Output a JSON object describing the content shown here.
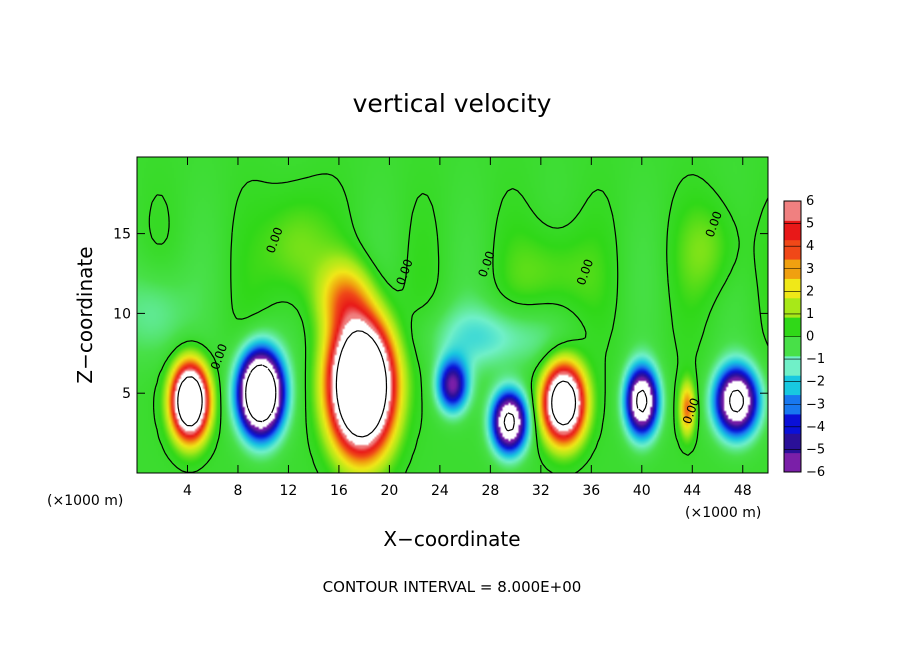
{
  "chart_data": {
    "type": "heatmap",
    "title": "vertical velocity",
    "xlabel": "X−coordinate",
    "ylabel": "Z−coordinate",
    "x_units": "(×1000 m)",
    "x_units_right": "(×1000 m)",
    "xlim": [
      0,
      50
    ],
    "ylim": [
      0,
      19.8
    ],
    "x_ticks": [
      4,
      8,
      12,
      16,
      20,
      24,
      28,
      32,
      36,
      40,
      44,
      48
    ],
    "y_ticks": [
      5,
      10,
      15
    ],
    "x_tick_labels": [
      "4",
      "8",
      "12",
      "16",
      "20",
      "24",
      "28",
      "32",
      "36",
      "40",
      "44",
      "48"
    ],
    "y_tick_labels": [
      "5",
      "10",
      "15"
    ],
    "colorbar": {
      "min": -6,
      "max": 6,
      "ticks": [
        6,
        5,
        4,
        3,
        2,
        1,
        0,
        -1,
        -2,
        -3,
        -4,
        -5,
        -6
      ],
      "tick_labels": [
        "6",
        "5",
        "4",
        "3",
        "2",
        "1",
        "0",
        "−1",
        "−2",
        "−3",
        "−4",
        "−5",
        "−6"
      ],
      "colors": [
        "#7a1fa8",
        "#2a1098",
        "#0a10d8",
        "#1878f0",
        "#18c8e0",
        "#70f0c8",
        "#48e048",
        "#30d818",
        "#a8e818",
        "#f0e818",
        "#f0a010",
        "#f04818",
        "#e81818",
        "#f08080"
      ],
      "over_color": "#ffffff",
      "under_color": "#ffffff"
    },
    "updrafts": [
      {
        "x": 4.2,
        "z": 4.5,
        "sx": 1.3,
        "sz": 2.1,
        "amp": 14
      },
      {
        "x": 17.8,
        "z": 5.5,
        "sx": 2.2,
        "sz": 3.6,
        "amp": 18
      },
      {
        "x": 33.8,
        "z": 4.4,
        "sx": 1.5,
        "sz": 2.2,
        "amp": 12
      },
      {
        "x": 43.6,
        "z": 4.0,
        "sx": 0.6,
        "sz": 1.6,
        "amp": 3.5
      },
      {
        "x": 16.5,
        "z": 11.0,
        "sx": 2.0,
        "sz": 2.2,
        "amp": 2.6
      },
      {
        "x": 12.5,
        "z": 14.0,
        "sx": 2.5,
        "sz": 3.5,
        "amp": 1.2
      },
      {
        "x": 33.0,
        "z": 12.5,
        "sx": 3.0,
        "sz": 3.0,
        "amp": 1.0
      },
      {
        "x": 45.5,
        "z": 14.0,
        "sx": 2.5,
        "sz": 3.0,
        "amp": 0.9
      }
    ],
    "downdrafts": [
      {
        "x": 9.8,
        "z": 5.0,
        "sx": 1.6,
        "sz": 2.4,
        "amp": 14
      },
      {
        "x": 25.0,
        "z": 5.5,
        "sx": 1.2,
        "sz": 1.6,
        "amp": 5.5
      },
      {
        "x": 29.5,
        "z": 3.2,
        "sx": 1.3,
        "sz": 1.8,
        "amp": 9
      },
      {
        "x": 40.0,
        "z": 4.5,
        "sx": 1.2,
        "sz": 2.0,
        "amp": 9
      },
      {
        "x": 47.5,
        "z": 4.5,
        "sx": 1.6,
        "sz": 2.0,
        "amp": 9
      },
      {
        "x": 28.0,
        "z": 8.5,
        "sx": 5.0,
        "sz": 2.0,
        "amp": 1.6
      },
      {
        "x": 1.5,
        "z": 10.0,
        "sx": 2.5,
        "sz": 3.0,
        "amp": 1.2
      }
    ],
    "zero_contour_labels": [
      {
        "x": 11.2,
        "z": 14.5,
        "text": "0.00"
      },
      {
        "x": 21.5,
        "z": 12.5,
        "text": "0.00"
      },
      {
        "x": 28.0,
        "z": 13.0,
        "text": "0.00"
      },
      {
        "x": 35.8,
        "z": 12.5,
        "text": "0.00"
      },
      {
        "x": 46.0,
        "z": 15.5,
        "text": "0.00"
      },
      {
        "x": 6.8,
        "z": 7.2,
        "text": "0.00"
      },
      {
        "x": 44.2,
        "z": 3.8,
        "text": "0.00"
      }
    ],
    "contour_interval_text": "CONTOUR INTERVAL = 8.000E+00"
  }
}
